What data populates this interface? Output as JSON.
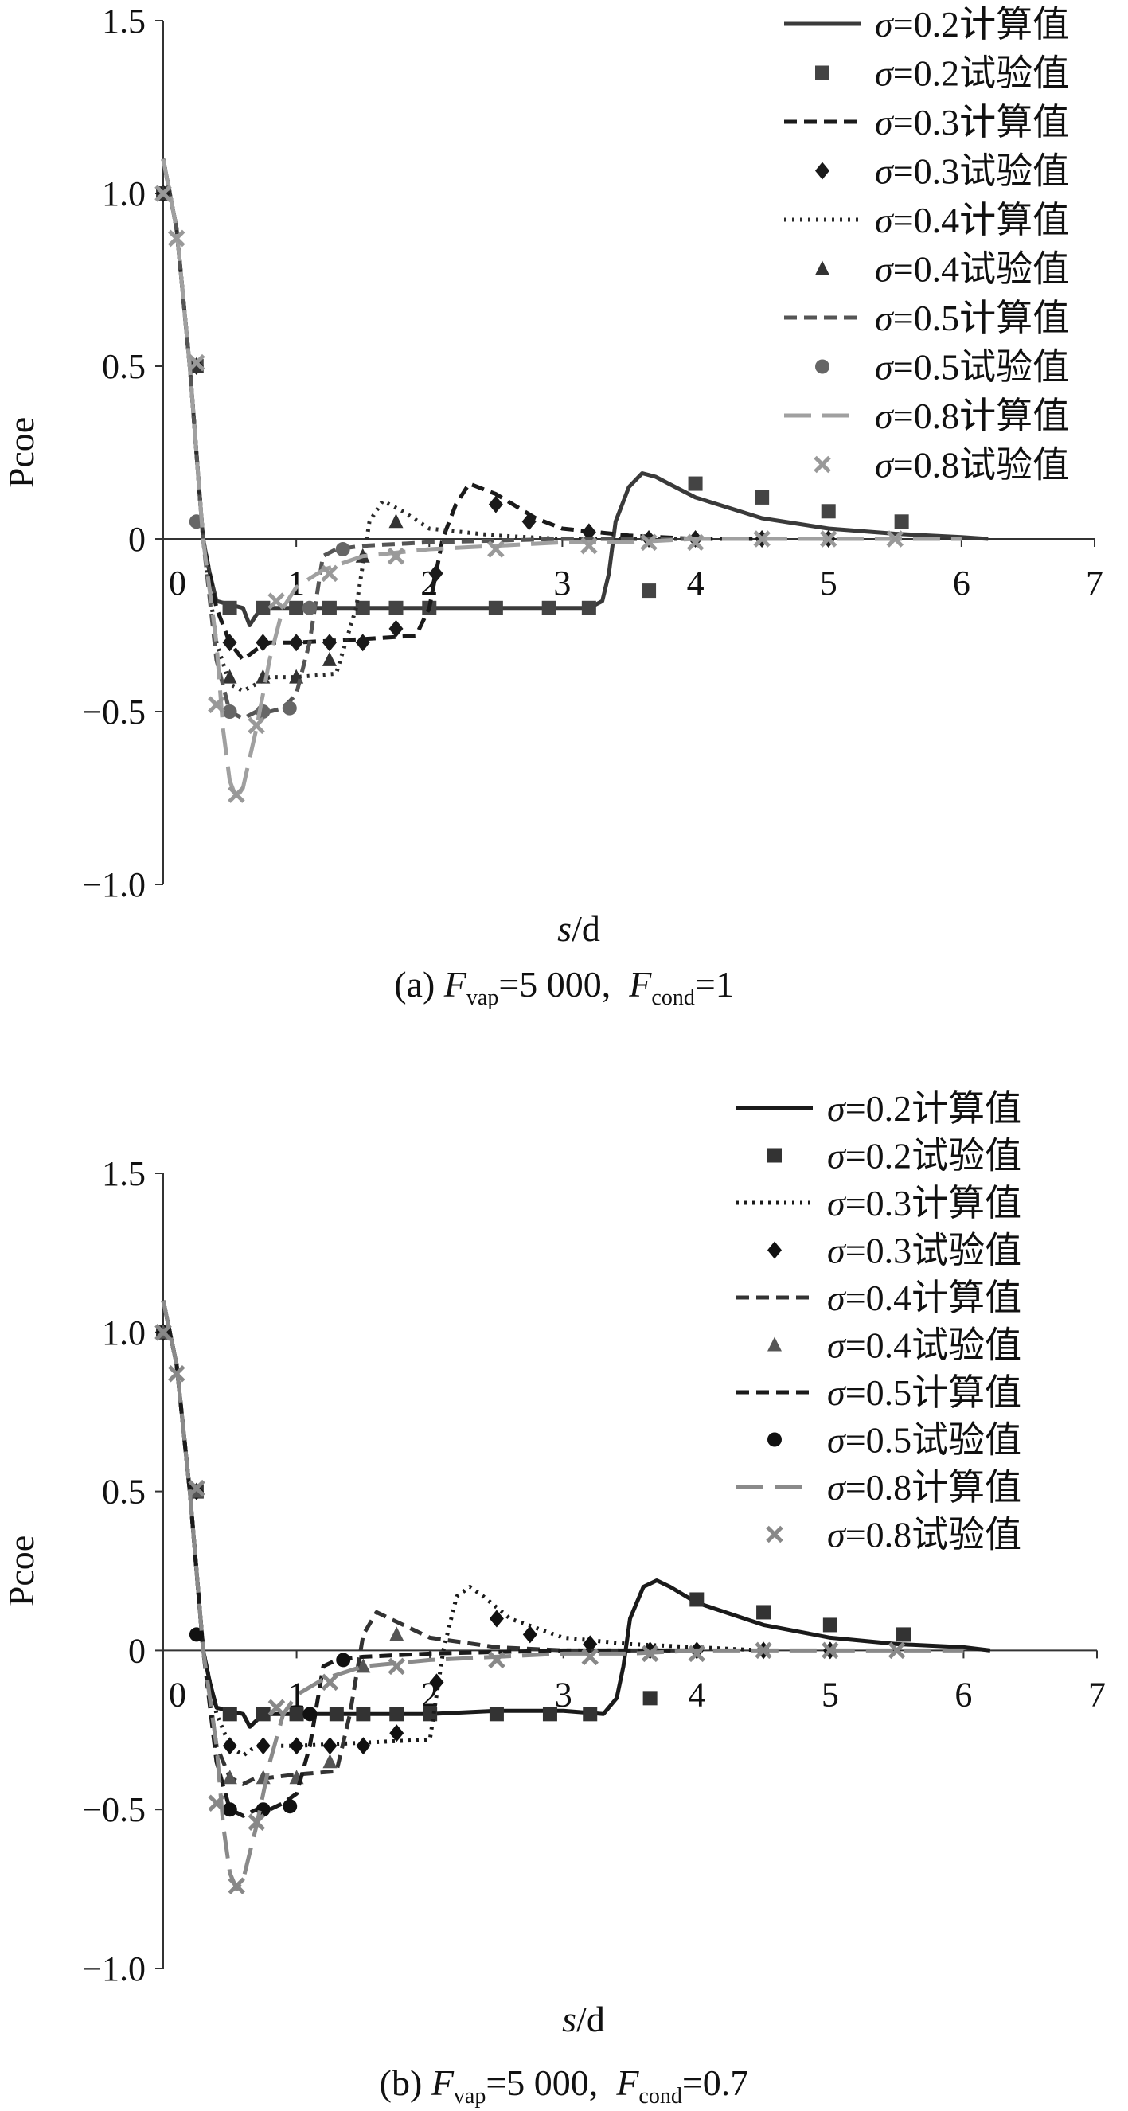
{
  "chart_data": [
    {
      "type": "line",
      "panel": "a",
      "caption": {
        "prefix": "(a) ",
        "f1": "F",
        "f1_sub": "vap",
        "f1_val": "=5 000,  ",
        "f2": "F",
        "f2_sub": "cond",
        "f2_val": "=1"
      },
      "xlabel_italic": "s",
      "xlabel_rest": "/d",
      "ylabel": "Pcoe",
      "xlim": [
        0,
        7
      ],
      "ylim": [
        -1.0,
        1.5
      ],
      "xticks": [
        "0",
        "1",
        "2",
        "3",
        "4",
        "5",
        "6",
        "7"
      ],
      "yticks": [
        "1.5",
        "1.0",
        "0.5",
        "0",
        "−0.5",
        "−1.0"
      ],
      "legend_position": "top-right",
      "series": [
        {
          "name": "σ=0.2计算值",
          "kind": "line",
          "color": "#3a3a3a",
          "dash": "solid",
          "x": [
            0,
            0.1,
            0.2,
            0.3,
            0.35,
            0.4,
            0.5,
            0.6,
            0.65,
            0.7,
            0.75,
            0.8,
            1.0,
            1.5,
            2.0,
            2.5,
            3.0,
            3.2,
            3.3,
            3.35,
            3.4,
            3.5,
            3.6,
            3.7,
            3.8,
            4.0,
            4.5,
            5.0,
            5.5,
            6.0,
            6.2
          ],
          "y": [
            1.1,
            0.9,
            0.5,
            0.0,
            -0.1,
            -0.18,
            -0.19,
            -0.2,
            -0.25,
            -0.22,
            -0.2,
            -0.2,
            -0.2,
            -0.2,
            -0.2,
            -0.2,
            -0.2,
            -0.2,
            -0.18,
            -0.1,
            0.05,
            0.15,
            0.19,
            0.18,
            0.16,
            0.12,
            0.06,
            0.03,
            0.015,
            0.005,
            0.0
          ]
        },
        {
          "name": "σ=0.2试验值",
          "kind": "scatter",
          "color": "#444444",
          "marker": "square",
          "x": [
            0,
            0.25,
            0.5,
            0.75,
            1.0,
            1.25,
            1.5,
            1.75,
            2.0,
            2.5,
            2.9,
            3.2,
            3.65,
            4.0,
            4.5,
            5.0,
            5.55
          ],
          "y": [
            1.0,
            0.5,
            -0.2,
            -0.2,
            -0.2,
            -0.2,
            -0.2,
            -0.2,
            -0.2,
            -0.2,
            -0.2,
            -0.2,
            -0.15,
            0.16,
            0.12,
            0.08,
            0.05
          ]
        },
        {
          "name": "σ=0.3计算值",
          "kind": "line",
          "color": "#1a1a1a",
          "dash": "dash",
          "x": [
            0,
            0.1,
            0.2,
            0.3,
            0.4,
            0.5,
            0.6,
            0.7,
            0.8,
            1.0,
            1.5,
            1.9,
            2.0,
            2.1,
            2.2,
            2.3,
            2.5,
            2.8,
            3.0,
            3.5,
            4.0,
            4.5
          ],
          "y": [
            1.1,
            0.9,
            0.5,
            0.0,
            -0.2,
            -0.3,
            -0.35,
            -0.32,
            -0.3,
            -0.3,
            -0.29,
            -0.28,
            -0.2,
            0.0,
            0.1,
            0.16,
            0.13,
            0.06,
            0.03,
            0.01,
            0.0,
            0.0
          ]
        },
        {
          "name": "σ=0.3试验值",
          "kind": "scatter",
          "color": "#1a1a1a",
          "marker": "diamond",
          "x": [
            0,
            0.25,
            0.5,
            0.75,
            1.0,
            1.25,
            1.5,
            1.75,
            2.05,
            2.5,
            2.75,
            3.2,
            3.65,
            4.0,
            4.5,
            5.0
          ],
          "y": [
            1.0,
            0.5,
            -0.3,
            -0.3,
            -0.3,
            -0.3,
            -0.3,
            -0.26,
            -0.1,
            0.1,
            0.05,
            0.02,
            0.0,
            0.0,
            0.0,
            0.0
          ]
        },
        {
          "name": "σ=0.4计算值",
          "kind": "line",
          "color": "#2a2a2a",
          "dash": "dot",
          "x": [
            0,
            0.1,
            0.2,
            0.3,
            0.4,
            0.5,
            0.6,
            0.7,
            0.8,
            1.0,
            1.3,
            1.45,
            1.55,
            1.65,
            1.8,
            2.0,
            2.5,
            3.0,
            4.0
          ],
          "y": [
            1.1,
            0.9,
            0.5,
            0.0,
            -0.3,
            -0.42,
            -0.44,
            -0.42,
            -0.4,
            -0.4,
            -0.39,
            -0.2,
            0.05,
            0.11,
            0.08,
            0.03,
            0.01,
            0.0,
            0.0
          ]
        },
        {
          "name": "σ=0.4试验值",
          "kind": "scatter",
          "color": "#333333",
          "marker": "triangle",
          "x": [
            0,
            0.25,
            0.5,
            0.75,
            1.0,
            1.25,
            1.5,
            1.75
          ],
          "y": [
            1.0,
            0.5,
            -0.4,
            -0.4,
            -0.4,
            -0.35,
            -0.05,
            0.05
          ]
        },
        {
          "name": "σ=0.5计算值",
          "kind": "line",
          "color": "#555555",
          "dash": "dash",
          "x": [
            0,
            0.1,
            0.2,
            0.3,
            0.4,
            0.5,
            0.6,
            0.7,
            0.8,
            0.9,
            1.0,
            1.1,
            1.2,
            1.3,
            1.5,
            2.0,
            3.0,
            4.0
          ],
          "y": [
            1.1,
            0.9,
            0.5,
            0.0,
            -0.35,
            -0.5,
            -0.52,
            -0.5,
            -0.5,
            -0.49,
            -0.45,
            -0.3,
            -0.05,
            -0.03,
            -0.02,
            -0.01,
            0.0,
            0.0
          ]
        },
        {
          "name": "σ=0.5试验值",
          "kind": "scatter",
          "color": "#666666",
          "marker": "circle",
          "x": [
            0.25,
            0.5,
            0.75,
            0.95,
            1.1,
            1.35
          ],
          "y": [
            0.05,
            -0.5,
            -0.5,
            -0.49,
            -0.2,
            -0.03
          ]
        },
        {
          "name": "σ=0.8计算值",
          "kind": "line",
          "color": "#a0a0a0",
          "dash": "longdash",
          "x": [
            0,
            0.1,
            0.2,
            0.3,
            0.4,
            0.45,
            0.5,
            0.55,
            0.6,
            0.7,
            0.8,
            0.9,
            1.0,
            1.2,
            1.5,
            2.0,
            2.5,
            3.0,
            3.5,
            4.0,
            5.0,
            6.0
          ],
          "y": [
            1.1,
            0.9,
            0.5,
            0.0,
            -0.3,
            -0.55,
            -0.7,
            -0.75,
            -0.72,
            -0.55,
            -0.35,
            -0.2,
            -0.14,
            -0.09,
            -0.05,
            -0.03,
            -0.02,
            -0.01,
            -0.01,
            0.0,
            0.0,
            0.0
          ]
        },
        {
          "name": "σ=0.8试验值",
          "kind": "scatter",
          "color": "#999999",
          "marker": "x",
          "x": [
            0,
            0.1,
            0.25,
            0.4,
            0.55,
            0.7,
            0.85,
            1.25,
            1.75,
            2.5,
            3.2,
            3.65,
            4.0,
            4.5,
            5.0,
            5.5
          ],
          "y": [
            1.0,
            0.87,
            0.51,
            -0.48,
            -0.74,
            -0.54,
            -0.18,
            -0.1,
            -0.05,
            -0.03,
            -0.02,
            -0.01,
            -0.01,
            0.0,
            0.0,
            0.0
          ]
        }
      ]
    },
    {
      "type": "line",
      "panel": "b",
      "caption": {
        "prefix": "(b) ",
        "f1": "F",
        "f1_sub": "vap",
        "f1_val": "=5 000,  ",
        "f2": "F",
        "f2_sub": "cond",
        "f2_val": "=0.7"
      },
      "xlabel_italic": "s",
      "xlabel_rest": "/d",
      "ylabel": "Pcoe",
      "xlim": [
        0,
        7
      ],
      "ylim": [
        -1.0,
        1.5
      ],
      "xticks": [
        "0",
        "1",
        "2",
        "3",
        "4",
        "5",
        "6",
        "7"
      ],
      "yticks": [
        "1.5",
        "1.0",
        "0.5",
        "0",
        "−0.5",
        "−1.0"
      ],
      "legend_position": "top-right",
      "series": [
        {
          "name": "σ=0.2计算值",
          "kind": "line",
          "color": "#1a1a1a",
          "dash": "solid",
          "x": [
            0,
            0.1,
            0.2,
            0.3,
            0.35,
            0.4,
            0.5,
            0.6,
            0.65,
            0.7,
            0.75,
            0.8,
            1.0,
            1.5,
            2.0,
            2.5,
            3.0,
            3.3,
            3.4,
            3.45,
            3.5,
            3.6,
            3.7,
            3.8,
            4.0,
            4.5,
            5.0,
            5.5,
            6.0,
            6.2
          ],
          "y": [
            1.1,
            0.9,
            0.5,
            0.0,
            -0.1,
            -0.18,
            -0.19,
            -0.2,
            -0.24,
            -0.22,
            -0.2,
            -0.2,
            -0.2,
            -0.2,
            -0.2,
            -0.19,
            -0.19,
            -0.2,
            -0.15,
            -0.05,
            0.1,
            0.2,
            0.22,
            0.2,
            0.15,
            0.08,
            0.04,
            0.02,
            0.01,
            0.0
          ]
        },
        {
          "name": "σ=0.2试验值",
          "kind": "scatter",
          "color": "#333333",
          "marker": "square",
          "x": [
            0,
            0.25,
            0.5,
            0.75,
            1.0,
            1.3,
            1.5,
            1.75,
            2.0,
            2.5,
            2.9,
            3.2,
            3.65,
            4.0,
            4.5,
            5.0,
            5.55
          ],
          "y": [
            1.0,
            0.5,
            -0.2,
            -0.2,
            -0.2,
            -0.2,
            -0.2,
            -0.2,
            -0.2,
            -0.2,
            -0.2,
            -0.2,
            -0.15,
            0.16,
            0.12,
            0.08,
            0.05
          ]
        },
        {
          "name": "σ=0.3计算值",
          "kind": "line",
          "color": "#1a1a1a",
          "dash": "dot",
          "x": [
            0,
            0.1,
            0.2,
            0.3,
            0.4,
            0.5,
            0.6,
            0.7,
            0.8,
            1.0,
            1.5,
            2.0,
            2.1,
            2.2,
            2.3,
            2.4,
            2.6,
            3.0,
            3.5,
            4.0,
            4.5
          ],
          "y": [
            1.1,
            0.9,
            0.5,
            0.0,
            -0.2,
            -0.3,
            -0.33,
            -0.3,
            -0.3,
            -0.3,
            -0.29,
            -0.28,
            0.0,
            0.17,
            0.2,
            0.17,
            0.1,
            0.04,
            0.02,
            0.01,
            0.0
          ]
        },
        {
          "name": "σ=0.3试验值",
          "kind": "scatter",
          "color": "#111111",
          "marker": "diamond",
          "x": [
            0,
            0.25,
            0.5,
            0.75,
            1.0,
            1.25,
            1.5,
            1.75,
            2.05,
            2.5,
            2.75,
            3.2,
            3.65,
            4.0,
            4.5,
            5.0
          ],
          "y": [
            1.0,
            0.5,
            -0.3,
            -0.3,
            -0.3,
            -0.3,
            -0.3,
            -0.26,
            -0.1,
            0.1,
            0.05,
            0.02,
            0.0,
            0.0,
            0.0,
            0.0
          ]
        },
        {
          "name": "σ=0.4计算值",
          "kind": "line",
          "color": "#333333",
          "dash": "dash",
          "x": [
            0,
            0.1,
            0.2,
            0.3,
            0.4,
            0.5,
            0.6,
            0.7,
            0.8,
            1.0,
            1.3,
            1.4,
            1.5,
            1.6,
            1.8,
            2.0,
            2.5,
            3.0,
            4.0
          ],
          "y": [
            1.1,
            0.9,
            0.5,
            0.0,
            -0.3,
            -0.4,
            -0.42,
            -0.4,
            -0.4,
            -0.39,
            -0.38,
            -0.2,
            0.05,
            0.12,
            0.08,
            0.04,
            0.01,
            0.0,
            0.0
          ]
        },
        {
          "name": "σ=0.4试验值",
          "kind": "scatter",
          "color": "#555555",
          "marker": "triangle",
          "x": [
            0,
            0.25,
            0.5,
            0.75,
            1.0,
            1.25,
            1.5,
            1.75
          ],
          "y": [
            1.0,
            0.5,
            -0.4,
            -0.4,
            -0.4,
            -0.35,
            -0.05,
            0.05
          ]
        },
        {
          "name": "σ=0.5计算值",
          "kind": "line",
          "color": "#1a1a1a",
          "dash": "dash",
          "x": [
            0,
            0.1,
            0.2,
            0.3,
            0.4,
            0.5,
            0.6,
            0.7,
            0.8,
            0.9,
            1.0,
            1.1,
            1.2,
            1.3,
            1.5,
            2.0,
            3.0,
            4.0
          ],
          "y": [
            1.1,
            0.9,
            0.5,
            0.0,
            -0.35,
            -0.5,
            -0.52,
            -0.5,
            -0.5,
            -0.48,
            -0.45,
            -0.3,
            -0.05,
            -0.03,
            -0.02,
            -0.01,
            0.0,
            0.0
          ]
        },
        {
          "name": "σ=0.5试验值",
          "kind": "scatter",
          "color": "#111111",
          "marker": "circle",
          "x": [
            0.25,
            0.5,
            0.75,
            0.95,
            1.1,
            1.35
          ],
          "y": [
            0.05,
            -0.5,
            -0.5,
            -0.49,
            -0.2,
            -0.03
          ]
        },
        {
          "name": "σ=0.8计算值",
          "kind": "line",
          "color": "#8a8a8a",
          "dash": "longdash",
          "x": [
            0,
            0.1,
            0.2,
            0.3,
            0.4,
            0.45,
            0.5,
            0.55,
            0.6,
            0.7,
            0.8,
            0.9,
            1.0,
            1.2,
            1.5,
            2.0,
            2.5,
            3.0,
            3.5,
            4.0,
            5.0,
            6.0
          ],
          "y": [
            1.1,
            0.9,
            0.5,
            0.0,
            -0.3,
            -0.55,
            -0.7,
            -0.75,
            -0.72,
            -0.55,
            -0.35,
            -0.2,
            -0.14,
            -0.09,
            -0.05,
            -0.03,
            -0.02,
            -0.01,
            -0.01,
            0.0,
            0.0,
            0.0
          ]
        },
        {
          "name": "σ=0.8试验值",
          "kind": "scatter",
          "color": "#888888",
          "marker": "x",
          "x": [
            0,
            0.1,
            0.25,
            0.4,
            0.55,
            0.7,
            0.85,
            1.25,
            1.75,
            2.5,
            3.2,
            3.65,
            4.0,
            4.5,
            5.0,
            5.5
          ],
          "y": [
            1.0,
            0.87,
            0.51,
            -0.48,
            -0.74,
            -0.54,
            -0.18,
            -0.1,
            -0.05,
            -0.03,
            -0.02,
            -0.01,
            -0.01,
            0.0,
            0.0,
            0.0
          ]
        }
      ]
    }
  ]
}
